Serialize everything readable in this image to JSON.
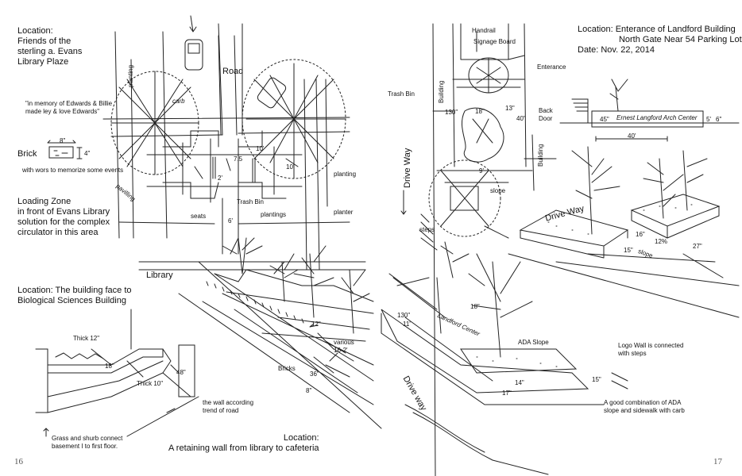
{
  "left_page": {
    "page_number": "16",
    "plaza": {
      "location": "Location:\nFriends of the\nsterling a. Evans\nLibrary Plaze",
      "memorial_quote": "\"in memory of Edwards & Billie\nmade ley & love Edwards\"",
      "brick_label": "Brick",
      "brick_note": "with wors to memorize some events",
      "brick_dim_w": "8\"",
      "brick_dim_h": "4\"",
      "loading_zone": "Loading Zone\nin front of Evans Library\nsolution for the complex\ncirculator in this area"
    },
    "plan_labels": {
      "road": "Road",
      "planting_top": "planting",
      "planting_right": "planting",
      "pavilling": "pavilling",
      "carb": "carb",
      "dim_10": "10'",
      "dim_7_5": "7.5",
      "dim_10b": "10'",
      "dim_2": "2'",
      "seats": "seats",
      "trash_bin": "Trash Bin",
      "plantings": "plantings",
      "planter": "planter",
      "dim_6": "6'",
      "library": "Library"
    },
    "wall_section": {
      "location": "Location: The building face to\nBiological Sciences Building",
      "thick_12": "Thick 12\"",
      "dim_18": "18\"",
      "thick_10": "Thick 10\"",
      "dim_48": "48\"",
      "grass_note": "Grass and shurb connect\nbasement I to first floor.",
      "wall_note": "the wall according\ntrend of road"
    },
    "retaining_wall": {
      "dim_12": "12\"",
      "various": "various\n16-2'",
      "bricks": "Bricks",
      "dim_36": "36\"",
      "dim_8": "8\"",
      "location": "Location:\nA retaining wall from library to cafeteria"
    }
  },
  "right_page": {
    "page_number": "17",
    "location": "Location: Enterance of Landford Building\n                 North Gate Near 54 Parking Lot\nDate: Nov. 22, 2014",
    "handrail": "Handrail",
    "signage_board": "Signage Board",
    "enterance": "Enterance",
    "trash_bin": "Trash Bin",
    "back_door": "Back\nDoor",
    "building_1": "Building",
    "building_2": "Building",
    "dim_130": "130\"",
    "dim_18": "18\"",
    "dim_13": "13\"",
    "dim_40": "40\"",
    "dim_9": "9'",
    "slope": "slope",
    "steps": "steps",
    "drive_way_1": "Drive Way",
    "drive_way_2": "Drive Way",
    "drive_way_3": "Drive way",
    "sign_text": "Ernest Langford Arch Center",
    "dim_45": "45\"",
    "dim_5": "5'",
    "dim_6": "6\"",
    "dim_40b": "40'",
    "dim_16": "16\"",
    "dim_15": "15\"",
    "dim_12pct": "12%",
    "slope2": "slope",
    "dim_27": "27\"",
    "dim_18b": "18\"",
    "dim_130b": "130\"",
    "dim_11": "11'",
    "wall_sign": "Landford Center",
    "ada_slope": "ADA Slope",
    "dim_14": "14\"",
    "dim_17": "17\"",
    "dim_15b": "15\"",
    "logo_wall": "Logo Wall is connected\nwith steps",
    "good_combo": "A good combination of ADA\nslope and sidewalk with carb"
  }
}
